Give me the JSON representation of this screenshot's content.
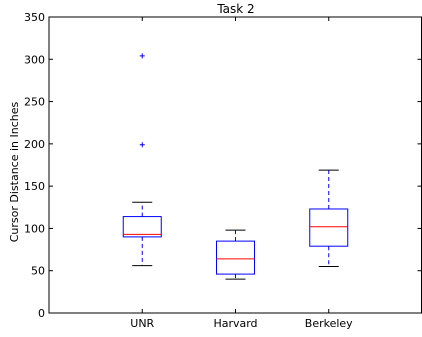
{
  "chart_data": {
    "type": "box",
    "title": "Task 2",
    "xlabel": "",
    "ylabel": "Cursor Distance in Inches",
    "ylim": [
      0,
      350
    ],
    "yticks": [
      0,
      50,
      100,
      150,
      200,
      250,
      300,
      350
    ],
    "grid": false,
    "categories": [
      "UNR",
      "Harvard",
      "Berkeley"
    ],
    "boxes": [
      {
        "category": "UNR",
        "whisker_low": 56,
        "q1": 90,
        "median": 93,
        "q3": 114,
        "whisker_high": 131,
        "outliers": [
          199,
          304
        ]
      },
      {
        "category": "Harvard",
        "whisker_low": 40,
        "q1": 46,
        "median": 64,
        "q3": 85,
        "whisker_high": 98,
        "outliers": []
      },
      {
        "category": "Berkeley",
        "whisker_low": 55,
        "q1": 79,
        "median": 102,
        "q3": 123,
        "whisker_high": 169,
        "outliers": []
      }
    ],
    "colors": {
      "box": "#0000ff",
      "whisker": "#0000ff",
      "cap": "#000000",
      "median": "#ff0000",
      "outlier": "#0000ff",
      "axis": "#000000"
    }
  }
}
